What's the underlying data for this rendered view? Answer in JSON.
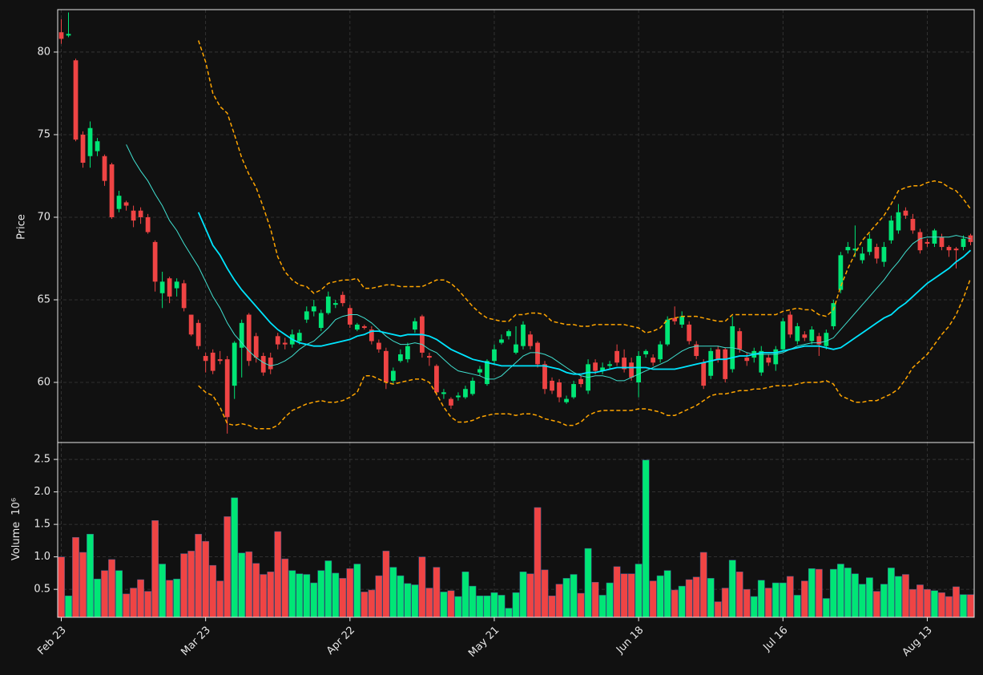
{
  "chart_data": {
    "type": "candlestick",
    "ylabel": "Price",
    "ylim": [
      56.36,
      82.57
    ],
    "yticks": [
      60,
      65,
      70,
      75,
      80
    ],
    "grid": true,
    "up_color": "#00e676",
    "down_color": "#ef4444",
    "categories": [
      "Feb 23",
      null,
      null,
      null,
      null,
      null,
      null,
      null,
      null,
      null,
      null,
      null,
      null,
      null,
      null,
      null,
      null,
      null,
      null,
      null,
      "Mar 23",
      null,
      null,
      null,
      null,
      null,
      null,
      null,
      null,
      null,
      null,
      null,
      null,
      null,
      null,
      null,
      null,
      null,
      null,
      null,
      "Apr 22",
      null,
      null,
      null,
      null,
      null,
      null,
      null,
      null,
      null,
      null,
      null,
      null,
      null,
      null,
      null,
      null,
      null,
      null,
      null,
      "May 21",
      null,
      null,
      null,
      null,
      null,
      null,
      null,
      null,
      null,
      null,
      null,
      null,
      null,
      null,
      null,
      null,
      null,
      null,
      null,
      "Jun 18",
      null,
      null,
      null,
      null,
      null,
      null,
      null,
      null,
      null,
      null,
      null,
      null,
      null,
      null,
      null,
      null,
      null,
      null,
      null,
      "Jul 16",
      null,
      null,
      null,
      null,
      null,
      null,
      null,
      null,
      null,
      null,
      null,
      null,
      null,
      null,
      null,
      null,
      null,
      null,
      null,
      "Aug 13",
      null,
      null,
      null,
      null,
      null,
      null
    ],
    "open": [
      81.2,
      81.0,
      79.5,
      75.0,
      73.7,
      74.0,
      73.7,
      73.2,
      70.5,
      70.9,
      70.4,
      70.4,
      70.0,
      68.5,
      65.4,
      66.3,
      65.7,
      66.0,
      64.1,
      63.6,
      61.6,
      61.8,
      61.4,
      61.4,
      59.8,
      62.1,
      64.1,
      62.8,
      61.6,
      61.5,
      62.8,
      62.4,
      62.3,
      62.5,
      63.8,
      64.3,
      63.3,
      64.2,
      64.7,
      65.3,
      64.5,
      63.2,
      63.4,
      63.2,
      62.4,
      61.9,
      60.1,
      61.3,
      61.4,
      63.2,
      64.0,
      61.6,
      61.0,
      59.3,
      59.0,
      59.1,
      59.1,
      59.3,
      60.6,
      59.9,
      61.3,
      62.4,
      62.8,
      61.8,
      62.2,
      62.9,
      62.4,
      61.1,
      60.1,
      60.0,
      58.8,
      59.1,
      60.2,
      59.5,
      61.2,
      60.7,
      61.0,
      61.9,
      61.5,
      61.2,
      60.0,
      61.7,
      61.5,
      61.4,
      62.3,
      63.9,
      63.5,
      63.5,
      62.3,
      61.2,
      60.4,
      62.0,
      62.0,
      60.8,
      63.1,
      61.5,
      61.5,
      60.6,
      61.5,
      61.1,
      62.0,
      64.1,
      62.5,
      62.9,
      62.5,
      62.8,
      62.2,
      63.4,
      65.6,
      68.0,
      68.0,
      67.4,
      67.9,
      68.2,
      67.3,
      68.6,
      69.2,
      70.4,
      69.9,
      69.1,
      68.5,
      68.4,
      68.8,
      68.2,
      68.1,
      68.2,
      68.9
    ],
    "high": [
      82.0,
      82.4,
      79.6,
      75.2,
      75.8,
      74.8,
      73.8,
      73.3,
      71.6,
      71.0,
      70.7,
      70.6,
      70.2,
      68.6,
      66.7,
      66.4,
      66.3,
      66.2,
      64.1,
      63.8,
      61.8,
      62.0,
      61.9,
      61.6,
      62.5,
      63.8,
      64.2,
      63.0,
      61.8,
      61.8,
      63.0,
      62.7,
      63.2,
      63.2,
      64.6,
      65.0,
      64.4,
      65.5,
      65.0,
      65.5,
      64.7,
      63.6,
      63.5,
      63.4,
      62.6,
      62.1,
      60.9,
      62.0,
      62.4,
      63.9,
      64.1,
      61.8,
      61.1,
      59.6,
      59.1,
      59.4,
      59.8,
      60.3,
      61.0,
      61.4,
      62.3,
      62.9,
      63.2,
      63.4,
      63.7,
      63.1,
      62.5,
      61.3,
      60.3,
      60.2,
      59.2,
      60.1,
      60.4,
      61.4,
      61.4,
      61.2,
      61.3,
      62.3,
      62.0,
      61.5,
      61.9,
      62.0,
      61.7,
      62.5,
      64.0,
      64.6,
      64.3,
      63.7,
      62.5,
      61.4,
      62.1,
      62.2,
      62.1,
      64.0,
      63.3,
      61.8,
      62.1,
      62.2,
      61.7,
      62.2,
      63.9,
      64.3,
      63.6,
      63.1,
      63.4,
      63.0,
      63.2,
      65.0,
      67.9,
      68.5,
      69.5,
      68.2,
      69.0,
      68.4,
      68.5,
      70.1,
      70.8,
      70.6,
      70.2,
      69.3,
      68.7,
      69.3,
      69.0,
      68.3,
      68.2,
      68.9,
      69.0
    ],
    "low": [
      80.5,
      80.9,
      74.6,
      73.0,
      73.0,
      73.7,
      71.9,
      69.9,
      70.3,
      70.4,
      69.4,
      69.6,
      69.0,
      65.5,
      64.5,
      64.8,
      65.2,
      64.3,
      62.8,
      62.0,
      60.6,
      60.5,
      61.1,
      56.9,
      59.0,
      60.3,
      61.0,
      61.2,
      60.4,
      60.5,
      62.0,
      62.0,
      62.1,
      62.3,
      63.6,
      64.0,
      63.1,
      64.1,
      64.5,
      64.6,
      63.3,
      63.1,
      63.2,
      62.3,
      61.8,
      59.6,
      59.9,
      61.2,
      61.2,
      63.0,
      61.5,
      61.0,
      59.2,
      59.0,
      58.4,
      58.9,
      59.0,
      59.2,
      60.4,
      59.8,
      61.1,
      62.3,
      62.6,
      61.7,
      62.0,
      62.0,
      60.9,
      59.3,
      59.3,
      58.8,
      58.7,
      59.0,
      59.7,
      59.3,
      60.5,
      60.5,
      60.8,
      61.0,
      60.6,
      60.1,
      59.1,
      61.5,
      61.0,
      61.2,
      62.2,
      63.5,
      63.3,
      62.3,
      61.4,
      59.6,
      60.2,
      61.2,
      60.0,
      60.6,
      61.8,
      61.0,
      61.2,
      60.4,
      61.0,
      60.7,
      61.9,
      62.7,
      62.3,
      62.5,
      62.3,
      61.6,
      62.0,
      63.2,
      65.4,
      67.8,
      67.6,
      67.2,
      67.7,
      67.2,
      67.0,
      68.4,
      69.0,
      69.9,
      69.0,
      67.8,
      68.2,
      68.2,
      68.0,
      67.6,
      66.9,
      68.0,
      68.3
    ],
    "close": [
      80.8,
      81.1,
      74.7,
      73.3,
      75.4,
      74.6,
      72.2,
      70.0,
      71.3,
      70.7,
      69.8,
      70.0,
      69.1,
      66.1,
      66.1,
      65.2,
      66.1,
      64.5,
      62.9,
      62.2,
      61.3,
      60.7,
      61.3,
      57.9,
      62.4,
      63.6,
      61.3,
      61.5,
      60.6,
      60.8,
      62.3,
      62.3,
      62.9,
      63.0,
      64.3,
      64.6,
      64.2,
      65.2,
      64.8,
      64.8,
      63.5,
      63.5,
      63.3,
      62.5,
      62.0,
      60.0,
      60.7,
      61.7,
      62.2,
      63.7,
      61.8,
      61.5,
      59.4,
      59.4,
      58.6,
      59.2,
      59.6,
      60.1,
      60.8,
      61.3,
      62.0,
      62.6,
      63.1,
      62.3,
      63.5,
      62.2,
      61.1,
      59.6,
      59.5,
      59.1,
      59.0,
      59.9,
      59.9,
      61.1,
      60.7,
      60.9,
      61.1,
      61.2,
      60.8,
      60.3,
      61.6,
      61.9,
      61.2,
      62.3,
      63.8,
      63.7,
      64.0,
      62.5,
      61.6,
      59.8,
      61.9,
      61.4,
      60.2,
      63.4,
      62.0,
      61.3,
      61.9,
      61.9,
      61.2,
      62.0,
      63.7,
      62.9,
      63.4,
      62.7,
      63.2,
      62.3,
      63.0,
      64.8,
      67.7,
      68.2,
      68.1,
      67.8,
      68.7,
      67.5,
      68.2,
      69.8,
      70.3,
      70.1,
      69.2,
      68.0,
      68.4,
      69.2,
      68.2,
      68.0,
      68.0,
      68.7,
      68.5
    ],
    "lines": [
      {
        "color": "#40e0d0",
        "width": 1,
        "dash": false,
        "values": [
          null,
          null,
          null,
          null,
          null,
          null,
          null,
          null,
          null,
          74.4,
          73.5,
          72.8,
          72.2,
          71.4,
          70.7,
          69.8,
          69.2,
          68.4,
          67.7,
          67.0,
          66.1,
          65.2,
          64.5,
          63.6,
          62.9,
          62.4,
          61.9,
          61.5,
          61.2,
          61.0,
          61.1,
          61.3,
          61.6,
          62.0,
          62.3,
          62.5,
          62.9,
          63.3,
          63.8,
          64.0,
          64.1,
          64.1,
          63.9,
          63.6,
          63.2,
          62.8,
          62.5,
          62.3,
          62.3,
          62.4,
          62.3,
          62.0,
          61.8,
          61.4,
          61.0,
          60.7,
          60.6,
          60.5,
          60.4,
          60.2,
          60.2,
          60.4,
          60.8,
          61.2,
          61.6,
          61.8,
          61.8,
          61.7,
          61.5,
          61.2,
          60.9,
          60.6,
          60.4,
          60.3,
          60.4,
          60.4,
          60.3,
          60.1,
          60.1,
          60.3,
          60.5,
          60.7,
          60.9,
          61.1,
          61.3,
          61.6,
          61.9,
          62.1,
          62.2,
          62.2,
          62.2,
          62.2,
          62.1,
          62.1,
          62.0,
          61.8,
          61.7,
          61.7,
          61.7,
          61.7,
          61.8,
          62.0,
          62.2,
          62.3,
          62.4,
          62.4,
          62.5,
          62.7,
          63.2,
          63.7,
          64.2,
          64.7,
          65.2,
          65.7,
          66.2,
          66.8,
          67.3,
          67.9,
          68.4,
          68.7,
          68.8,
          68.8,
          68.8,
          68.8,
          68.9,
          68.8,
          68.7
        ]
      },
      {
        "color": "#00e5ff",
        "width": 1.8,
        "dash": false,
        "values": [
          null,
          null,
          null,
          null,
          null,
          null,
          null,
          null,
          null,
          null,
          null,
          null,
          null,
          null,
          null,
          null,
          null,
          null,
          null,
          70.3,
          69.3,
          68.3,
          67.7,
          66.9,
          66.2,
          65.6,
          65.1,
          64.6,
          64.1,
          63.6,
          63.2,
          62.9,
          62.6,
          62.4,
          62.3,
          62.2,
          62.2,
          62.3,
          62.4,
          62.5,
          62.6,
          62.8,
          62.9,
          63.1,
          63.1,
          63.0,
          62.9,
          62.8,
          62.9,
          62.9,
          62.9,
          62.8,
          62.6,
          62.3,
          62.0,
          61.8,
          61.6,
          61.4,
          61.3,
          61.2,
          61.1,
          61.0,
          61.0,
          61.0,
          61.0,
          61.0,
          61.0,
          61.0,
          60.9,
          60.8,
          60.6,
          60.5,
          60.5,
          60.6,
          60.6,
          60.7,
          60.8,
          60.9,
          60.9,
          60.9,
          60.9,
          60.9,
          60.8,
          60.8,
          60.8,
          60.8,
          60.9,
          61.0,
          61.1,
          61.2,
          61.3,
          61.4,
          61.4,
          61.5,
          61.6,
          61.6,
          61.7,
          61.8,
          61.8,
          61.8,
          61.9,
          62.0,
          62.1,
          62.2,
          62.2,
          62.2,
          62.1,
          62.0,
          62.1,
          62.4,
          62.7,
          63.0,
          63.3,
          63.6,
          63.9,
          64.1,
          64.5,
          64.8,
          65.2,
          65.6,
          66.0,
          66.3,
          66.6,
          66.9,
          67.3,
          67.6,
          68.0
        ]
      },
      {
        "color": "#ffa500",
        "width": 1.5,
        "dash": true,
        "values": [
          null,
          null,
          null,
          null,
          null,
          null,
          null,
          null,
          null,
          null,
          null,
          null,
          null,
          null,
          null,
          null,
          null,
          null,
          null,
          80.7,
          79.4,
          77.5,
          76.7,
          76.3,
          75.0,
          73.6,
          72.6,
          71.8,
          70.6,
          69.3,
          67.6,
          66.7,
          66.2,
          65.9,
          65.8,
          65.4,
          65.6,
          66.0,
          66.1,
          66.2,
          66.2,
          66.3,
          65.7,
          65.7,
          65.8,
          65.9,
          65.9,
          65.8,
          65.8,
          65.8,
          65.8,
          66.0,
          66.2,
          66.2,
          66.0,
          65.6,
          65.1,
          64.6,
          64.2,
          63.9,
          63.8,
          63.7,
          63.7,
          64.1,
          64.1,
          64.2,
          64.2,
          64.1,
          63.7,
          63.6,
          63.5,
          63.5,
          63.4,
          63.4,
          63.5,
          63.5,
          63.5,
          63.5,
          63.5,
          63.4,
          63.3,
          63.0,
          63.1,
          63.3,
          63.8,
          63.9,
          64.0,
          64.0,
          64.0,
          63.9,
          63.8,
          63.7,
          63.7,
          64.1,
          64.1,
          64.1,
          64.1,
          64.1,
          64.1,
          64.1,
          64.3,
          64.4,
          64.5,
          64.4,
          64.4,
          64.1,
          64.0,
          64.4,
          65.8,
          66.9,
          67.8,
          68.6,
          69.1,
          69.6,
          70.1,
          70.8,
          71.6,
          71.8,
          71.9,
          71.9,
          72.1,
          72.2,
          72.1,
          71.8,
          71.6,
          71.1,
          70.5
        ]
      },
      {
        "color": "#ffa500",
        "width": 1.5,
        "dash": true,
        "values": [
          null,
          null,
          null,
          null,
          null,
          null,
          null,
          null,
          null,
          null,
          null,
          null,
          null,
          null,
          null,
          null,
          null,
          null,
          null,
          59.8,
          59.4,
          59.2,
          58.5,
          57.5,
          57.4,
          57.5,
          57.4,
          57.2,
          57.2,
          57.2,
          57.4,
          57.9,
          58.3,
          58.5,
          58.7,
          58.8,
          58.9,
          58.8,
          58.8,
          58.9,
          59.1,
          59.4,
          60.4,
          60.4,
          60.2,
          60.0,
          59.9,
          60.0,
          60.1,
          60.2,
          60.2,
          60.0,
          59.3,
          58.5,
          57.9,
          57.6,
          57.6,
          57.7,
          57.9,
          58.0,
          58.1,
          58.1,
          58.1,
          58.0,
          58.1,
          58.1,
          58.0,
          57.8,
          57.7,
          57.6,
          57.4,
          57.4,
          57.6,
          58.0,
          58.2,
          58.3,
          58.3,
          58.3,
          58.3,
          58.3,
          58.4,
          58.4,
          58.3,
          58.2,
          58.0,
          58.0,
          58.2,
          58.4,
          58.6,
          58.9,
          59.2,
          59.3,
          59.3,
          59.4,
          59.5,
          59.5,
          59.6,
          59.6,
          59.7,
          59.8,
          59.8,
          59.8,
          59.9,
          60.0,
          60.0,
          60.0,
          60.1,
          59.9,
          59.2,
          59.0,
          58.8,
          58.8,
          58.9,
          58.9,
          59.1,
          59.3,
          59.6,
          60.2,
          60.9,
          61.3,
          61.7,
          62.3,
          62.9,
          63.4,
          64.1,
          65.1,
          66.3
        ]
      }
    ],
    "volume": {
      "ylabel": "Volume",
      "offset_label": "10⁶",
      "ylim": [
        0.07,
        2.76
      ],
      "yticks": [
        0.5,
        {
          "value": 1,
          "label": "1.0"
        },
        1.5,
        {
          "value": 2,
          "label": "2.0"
        },
        2.5
      ],
      "values": [
        1.0,
        0.4,
        1.3,
        1.07,
        1.35,
        0.66,
        0.79,
        0.96,
        0.79,
        0.43,
        0.52,
        0.65,
        0.47,
        1.56,
        0.89,
        0.64,
        0.66,
        1.05,
        1.09,
        1.35,
        1.24,
        0.87,
        0.63,
        1.62,
        1.91,
        1.06,
        1.08,
        0.9,
        0.73,
        0.77,
        1.39,
        0.97,
        0.79,
        0.74,
        0.73,
        0.6,
        0.79,
        0.94,
        0.75,
        0.67,
        0.82,
        0.89,
        0.46,
        0.49,
        0.71,
        1.09,
        0.84,
        0.71,
        0.59,
        0.57,
        1.0,
        0.52,
        0.84,
        0.46,
        0.48,
        0.39,
        0.77,
        0.55,
        0.4,
        0.4,
        0.45,
        0.41,
        0.21,
        0.45,
        0.77,
        0.74,
        1.76,
        0.8,
        0.4,
        0.58,
        0.67,
        0.73,
        0.44,
        1.13,
        0.61,
        0.41,
        0.6,
        0.85,
        0.74,
        0.74,
        0.89,
        2.49,
        0.63,
        0.71,
        0.79,
        0.49,
        0.55,
        0.65,
        0.69,
        1.07,
        0.67,
        0.31,
        0.52,
        0.95,
        0.77,
        0.5,
        0.39,
        0.64,
        0.52,
        0.6,
        0.6,
        0.7,
        0.41,
        0.63,
        0.82,
        0.81,
        0.36,
        0.81,
        0.89,
        0.83,
        0.74,
        0.58,
        0.68,
        0.47,
        0.58,
        0.83,
        0.7,
        0.73,
        0.5,
        0.57,
        0.5,
        0.48,
        0.45,
        0.39,
        0.54,
        0.42,
        0.42
      ]
    }
  }
}
